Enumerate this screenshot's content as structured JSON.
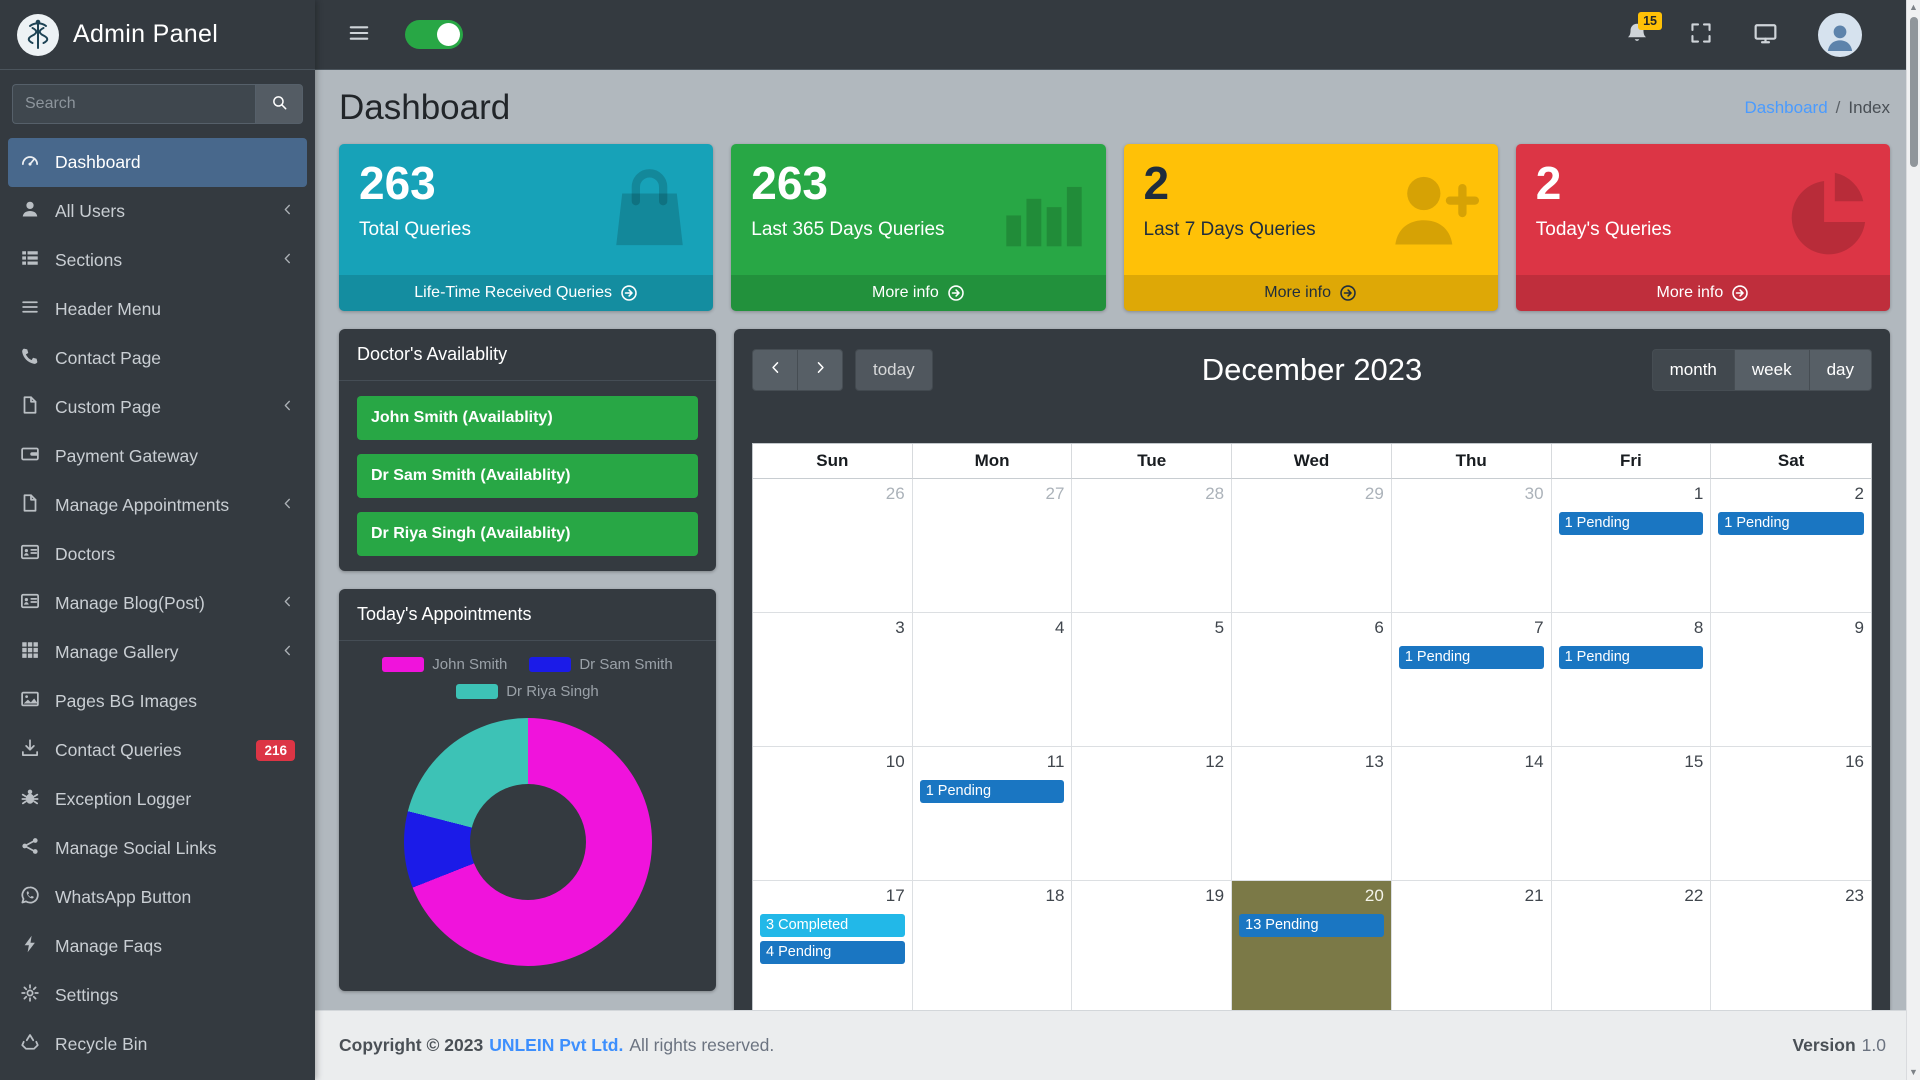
{
  "brand": {
    "title": "Admin Panel"
  },
  "navbar": {
    "notifications_badge": "15"
  },
  "sidebar": {
    "search_placeholder": "Search",
    "items": [
      {
        "label": "Dashboard",
        "icon": "tachometer",
        "active": true
      },
      {
        "label": "All Users",
        "icon": "user",
        "expandable": true
      },
      {
        "label": "Sections",
        "icon": "th-list",
        "expandable": true
      },
      {
        "label": "Header Menu",
        "icon": "bars"
      },
      {
        "label": "Contact Page",
        "icon": "phone"
      },
      {
        "label": "Custom Page",
        "icon": "file",
        "expandable": true
      },
      {
        "label": "Payment Gateway",
        "icon": "wallet"
      },
      {
        "label": "Manage Appointments",
        "icon": "file",
        "expandable": true
      },
      {
        "label": "Doctors",
        "icon": "id-card"
      },
      {
        "label": "Manage Blog(Post)",
        "icon": "id-card",
        "expandable": true
      },
      {
        "label": "Manage Gallery",
        "icon": "th",
        "expandable": true
      },
      {
        "label": "Pages BG Images",
        "icon": "image"
      },
      {
        "label": "Contact Queries",
        "icon": "download",
        "badge": "216"
      },
      {
        "label": "Exception Logger",
        "icon": "bug"
      },
      {
        "label": "Manage Social Links",
        "icon": "share"
      },
      {
        "label": "WhatsApp Button",
        "icon": "whatsapp"
      },
      {
        "label": "Manage Faqs",
        "icon": "bolt"
      },
      {
        "label": "Settings",
        "icon": "gear"
      },
      {
        "label": "Recycle Bin",
        "icon": "recycle"
      }
    ]
  },
  "page": {
    "title": "Dashboard",
    "breadcrumb": [
      {
        "label": "Dashboard"
      },
      {
        "label": "Index"
      }
    ]
  },
  "info_boxes": [
    {
      "value": "263",
      "label": "Total Queries",
      "footer": "Life-Time Received Queries",
      "color": "#17a2b8",
      "text": "#ffffff",
      "icon": "bag"
    },
    {
      "value": "263",
      "label": "Last 365 Days Queries",
      "footer": "More info",
      "color": "#28a745",
      "text": "#ffffff",
      "icon": "chart"
    },
    {
      "value": "2",
      "label": "Last 7 Days Queries",
      "footer": "More info",
      "color": "#ffc107",
      "text": "#1f2d3d",
      "icon": "user-plus"
    },
    {
      "value": "2",
      "label": "Today's Queries",
      "footer": "More info",
      "color": "#dc3545",
      "text": "#ffffff",
      "icon": "pie"
    }
  ],
  "availability": {
    "title": "Doctor's Availablity",
    "button_color": "#28a745",
    "doctors": [
      "John Smith (Availablity)",
      "Dr Sam Smith (Availablity)",
      "Dr Riya Singh (Availablity)"
    ]
  },
  "appointments": {
    "title": "Today's Appointments",
    "chart_data": {
      "type": "pie",
      "donut": true,
      "labels": [
        "John Smith",
        "Dr Sam Smith",
        "Dr Riya Singh"
      ],
      "values": [
        69,
        10,
        21
      ],
      "colors": [
        "#f013dc",
        "#1b1be8",
        "#3dc2b6"
      ]
    }
  },
  "calendar": {
    "title": "December 2023",
    "today_label": "today",
    "views": [
      "month",
      "week",
      "day"
    ],
    "active_view": "month",
    "day_headers": [
      "Sun",
      "Mon",
      "Tue",
      "Wed",
      "Thu",
      "Fri",
      "Sat"
    ],
    "event_colors": {
      "pending": "#1a76c2",
      "completed": "#22b8e8"
    },
    "today_highlight": "#7b7947",
    "weeks": [
      [
        {
          "d": "26",
          "out": true
        },
        {
          "d": "27",
          "out": true
        },
        {
          "d": "28",
          "out": true
        },
        {
          "d": "29",
          "out": true
        },
        {
          "d": "30",
          "out": true
        },
        {
          "d": "1",
          "events": [
            {
              "text": "1 Pending",
              "type": "pending"
            }
          ]
        },
        {
          "d": "2",
          "events": [
            {
              "text": "1 Pending",
              "type": "pending"
            }
          ]
        }
      ],
      [
        {
          "d": "3"
        },
        {
          "d": "4"
        },
        {
          "d": "5"
        },
        {
          "d": "6"
        },
        {
          "d": "7",
          "events": [
            {
              "text": "1 Pending",
              "type": "pending"
            }
          ]
        },
        {
          "d": "8",
          "events": [
            {
              "text": "1 Pending",
              "type": "pending"
            }
          ]
        },
        {
          "d": "9"
        }
      ],
      [
        {
          "d": "10"
        },
        {
          "d": "11",
          "events": [
            {
              "text": "1 Pending",
              "type": "pending"
            }
          ]
        },
        {
          "d": "12"
        },
        {
          "d": "13"
        },
        {
          "d": "14"
        },
        {
          "d": "15"
        },
        {
          "d": "16"
        }
      ],
      [
        {
          "d": "17",
          "events": [
            {
              "text": "3 Completed",
              "type": "completed"
            },
            {
              "text": "4 Pending",
              "type": "pending"
            }
          ]
        },
        {
          "d": "18"
        },
        {
          "d": "19"
        },
        {
          "d": "20",
          "today": true,
          "events": [
            {
              "text": "13 Pending",
              "type": "pending"
            }
          ]
        },
        {
          "d": "21"
        },
        {
          "d": "22"
        },
        {
          "d": "23"
        }
      ]
    ]
  },
  "footer": {
    "copyright_prefix": "Copyright © 2023",
    "company": "UNLEIN Pvt Ltd.",
    "copyright_suffix": "All rights reserved.",
    "version_label": "Version",
    "version_value": "1.0"
  }
}
